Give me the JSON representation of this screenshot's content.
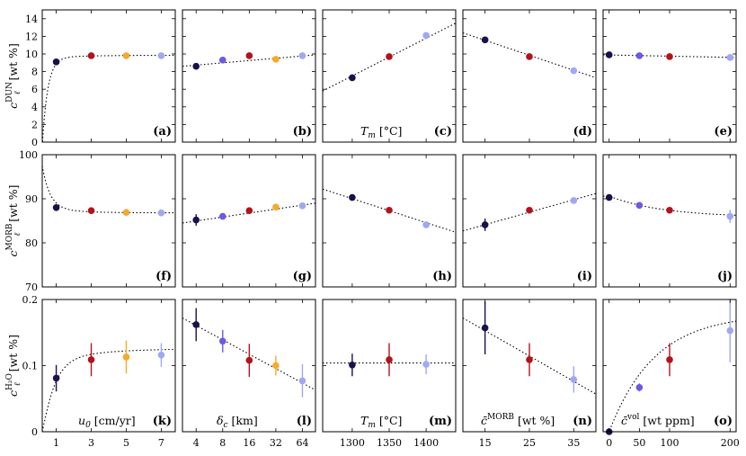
{
  "colors": {
    "dark": "#1c0f4b",
    "red": "#b2131b",
    "orange": "#f7a92a",
    "violet": "#6a5ae6",
    "lilac": "#9fa8f2"
  },
  "chart_data": {
    "type": "scatter",
    "row_ylabels": [
      {
        "sym": "c",
        "sub": "ℓ",
        "sup": "DUN",
        "unit": "[wt %]"
      },
      {
        "sym": "c",
        "sub": "ℓ",
        "sup": "MORB",
        "unit": "[wt %]"
      },
      {
        "sym": "c",
        "sub": "ℓ",
        "sup": "H₂O",
        "unit": "[wt %]"
      }
    ],
    "row_yranges": [
      [
        0,
        15
      ],
      [
        70,
        100
      ],
      [
        0,
        0.2
      ]
    ],
    "row_yticks": [
      [
        "0",
        "2",
        "4",
        "6",
        "8",
        "10",
        "12",
        "14"
      ],
      [
        "70",
        "80",
        "90",
        "100"
      ],
      [
        "0",
        "0.1",
        "0.2"
      ]
    ],
    "row_ytick_values": [
      [
        0,
        2,
        4,
        6,
        8,
        10,
        12,
        14
      ],
      [
        70,
        80,
        90,
        100
      ],
      [
        0,
        0.1,
        0.2
      ]
    ],
    "columns": [
      {
        "xlabel": {
          "main": "u",
          "sub": "0",
          "sup": "",
          "unit": " [cm/yr]"
        },
        "xscale": "linear",
        "xlim": [
          0.2,
          7.8
        ],
        "xticks": [
          "1",
          "3",
          "5",
          "7"
        ],
        "xtick_values": [
          1,
          3,
          5,
          7
        ],
        "x": [
          1,
          3,
          5,
          7
        ],
        "colors": [
          "dark",
          "red",
          "orange",
          "lilac"
        ],
        "fits": [
          "sat",
          "sat",
          "sat"
        ]
      },
      {
        "xlabel": {
          "main": "δ",
          "sub": "c",
          "sup": "",
          "unit": " [km]"
        },
        "xscale": "log2",
        "xlim": [
          2.8,
          90
        ],
        "xticks": [
          "4",
          "8",
          "16",
          "32",
          "64"
        ],
        "xtick_values": [
          4,
          8,
          16,
          32,
          64
        ],
        "x": [
          4,
          8,
          16,
          32,
          64
        ],
        "colors": [
          "dark",
          "violet",
          "red",
          "orange",
          "lilac"
        ],
        "fits": [
          "lin",
          "lin",
          "lin"
        ]
      },
      {
        "xlabel": {
          "main": "T",
          "sub": "m",
          "sup": "",
          "unit": " [°C]"
        },
        "xscale": "linear",
        "xlim": [
          1260,
          1440
        ],
        "xticks": [
          "1300",
          "1350",
          "1400"
        ],
        "xtick_values": [
          1300,
          1350,
          1400
        ],
        "x": [
          1300,
          1350,
          1400
        ],
        "colors": [
          "dark",
          "red",
          "lilac"
        ],
        "fits": [
          "lin",
          "lin",
          "lin"
        ]
      },
      {
        "xlabel": {
          "main": "c̄",
          "sub": "",
          "sup": "MORB",
          "unit": " [wt %]"
        },
        "xscale": "linear",
        "xlim": [
          10,
          40
        ],
        "xticks": [
          "15",
          "25",
          "35"
        ],
        "xtick_values": [
          15,
          25,
          35
        ],
        "x": [
          15,
          25,
          35
        ],
        "colors": [
          "dark",
          "red",
          "lilac"
        ],
        "fits": [
          "lin",
          "lin",
          "lin"
        ]
      },
      {
        "xlabel": {
          "main": "c̄",
          "sub": "",
          "sup": "vol",
          "unit": " [wt ppm]"
        },
        "xscale": "linear",
        "xlim": [
          -10,
          210
        ],
        "xticks": [
          "0",
          "50",
          "100",
          "200"
        ],
        "xtick_values": [
          0,
          50,
          100,
          200
        ],
        "x": [
          0,
          50,
          100,
          200
        ],
        "colors": [
          "dark",
          "violet",
          "red",
          "lilac"
        ],
        "fits": [
          "lin",
          "satd",
          "sat"
        ]
      }
    ],
    "panels": [
      {
        "id": "(a)",
        "row": 0,
        "col": 0,
        "y": [
          9.1,
          9.8,
          9.8,
          9.8
        ],
        "err": [
          0,
          0,
          0,
          0
        ],
        "fit": [
          8.6,
          9.1,
          9.75,
          9.82,
          9.85,
          0
        ]
      },
      {
        "id": "(b)",
        "row": 0,
        "col": 1,
        "y": [
          8.6,
          9.3,
          9.8,
          9.4,
          9.8
        ],
        "err": [
          0,
          0,
          0,
          0,
          0
        ],
        "fit": [
          8.6,
          9.9
        ]
      },
      {
        "id": "(c)",
        "row": 0,
        "col": 2,
        "y": [
          7.3,
          9.7,
          12.1
        ],
        "err": [
          0,
          0,
          0
        ],
        "fit": [
          5.8,
          13.5
        ]
      },
      {
        "id": "(d)",
        "row": 0,
        "col": 3,
        "y": [
          11.6,
          9.7,
          8.1
        ],
        "err": [
          0,
          0,
          0
        ],
        "fit": [
          12.4,
          7.3
        ]
      },
      {
        "id": "(e)",
        "row": 0,
        "col": 4,
        "y": [
          9.9,
          9.8,
          9.7,
          9.6
        ],
        "err": [
          0,
          0,
          0,
          0
        ],
        "fit": [
          9.9,
          9.6
        ]
      },
      {
        "id": "(f)",
        "row": 1,
        "col": 0,
        "y": [
          88.0,
          87.3,
          86.9,
          86.8
        ],
        "err": [
          0,
          0,
          0,
          0
        ],
        "fit": [
          95,
          88.0,
          87.1,
          86.9,
          86.8,
          0
        ]
      },
      {
        "id": "(g)",
        "row": 1,
        "col": 1,
        "y": [
          85.2,
          86.0,
          87.3,
          88.1,
          88.4
        ],
        "err": [
          1.3,
          0,
          0,
          0,
          0
        ],
        "fit": [
          84.5,
          89.0
        ]
      },
      {
        "id": "(h)",
        "row": 1,
        "col": 2,
        "y": [
          90.3,
          87.4,
          84.1
        ],
        "err": [
          0,
          0,
          0
        ],
        "fit": [
          92.2,
          82.4
        ]
      },
      {
        "id": "(i)",
        "row": 1,
        "col": 3,
        "y": [
          84.1,
          87.4,
          89.6
        ],
        "err": [
          1.4,
          0,
          0
        ],
        "fit": [
          82.7,
          91.2
        ]
      },
      {
        "id": "(j)",
        "row": 1,
        "col": 4,
        "y": [
          90.3,
          88.5,
          87.4,
          86.0
        ],
        "err": [
          0,
          0,
          0,
          1.5
        ],
        "fit": [
          90.6,
          88.6,
          87.5,
          85.9,
          85.8,
          1
        ]
      },
      {
        "id": "(k)",
        "row": 2,
        "col": 0,
        "y": [
          0.081,
          0.109,
          0.113,
          0.116
        ],
        "err": [
          0.02,
          0.025,
          0.025,
          0.018
        ],
        "fit": [
          0.0,
          0.081,
          0.104,
          0.114,
          0.124,
          2
        ]
      },
      {
        "id": "(l)",
        "row": 2,
        "col": 1,
        "y": [
          0.162,
          0.137,
          0.108,
          0.1,
          0.077
        ],
        "err": [
          0.025,
          0.017,
          0.025,
          0.015,
          0.025
        ],
        "fit": [
          0.172,
          0.063
        ]
      },
      {
        "id": "(m)",
        "row": 2,
        "col": 2,
        "y": [
          0.101,
          0.109,
          0.102
        ],
        "err": [
          0.017,
          0.025,
          0.015
        ],
        "fit": [
          0.104,
          0.104
        ]
      },
      {
        "id": "(n)",
        "row": 2,
        "col": 3,
        "y": [
          0.157,
          0.109,
          0.079
        ],
        "err": [
          0.04,
          0.025,
          0.02
        ],
        "fit": [
          0.172,
          0.057
        ]
      },
      {
        "id": "(o)",
        "row": 2,
        "col": 4,
        "y": [
          0.0,
          0.067,
          0.109,
          0.153
        ],
        "err": [
          0,
          0.006,
          0.025,
          0.048
        ],
        "fit": [
          0,
          0,
          0,
          0,
          0,
          3
        ]
      }
    ]
  }
}
